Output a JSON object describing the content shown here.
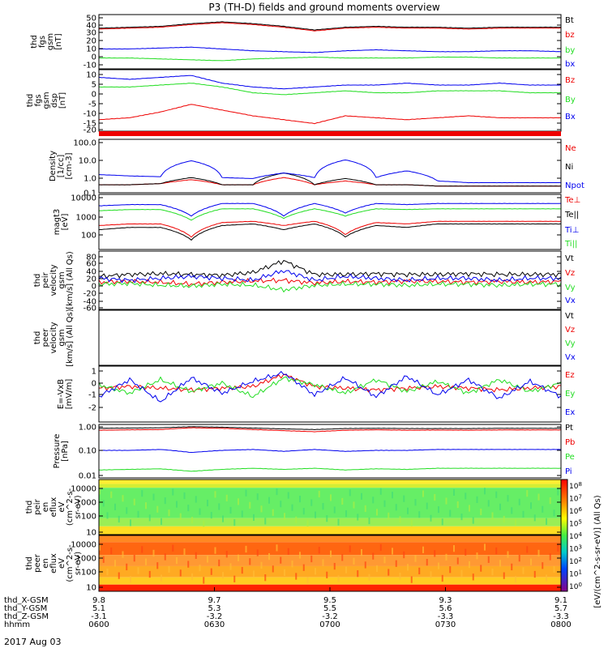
{
  "title": "P3 (TH-D) fields and ground moments overview",
  "date": "2017 Aug 03",
  "colors": {
    "black": "#000000",
    "red": "#ee0000",
    "green": "#22dd22",
    "blue": "#0000ee"
  },
  "chart_data": [
    {
      "type": "line",
      "ylabel": [
        "thd",
        "fgs",
        "gsm",
        "[nT]"
      ],
      "yticks": [
        "50",
        "40",
        "30",
        "20",
        "10",
        "0",
        "-10"
      ],
      "series": [
        {
          "name": "Bt",
          "color": "#000000",
          "values": [
            35,
            36,
            37,
            40,
            42,
            40,
            37,
            33,
            36,
            37,
            36,
            36,
            35,
            36,
            36,
            36
          ]
        },
        {
          "name": "bz",
          "color": "#ee0000",
          "values": [
            34,
            35,
            36,
            39,
            41,
            39,
            36,
            32,
            35,
            36,
            35,
            35,
            34,
            35,
            35,
            35
          ]
        },
        {
          "name": "by",
          "color": "#22dd22",
          "values": [
            2,
            2,
            1,
            0,
            -1,
            1,
            2,
            3,
            2,
            2,
            2,
            3,
            3,
            2,
            2,
            2
          ]
        },
        {
          "name": "bx",
          "color": "#0000ee",
          "values": [
            12,
            12,
            13,
            14,
            12,
            10,
            9,
            8,
            10,
            11,
            10,
            9,
            9,
            10,
            10,
            9
          ]
        }
      ]
    },
    {
      "type": "line",
      "ylabel": [
        "thd",
        "fgs",
        "gsm",
        "dsp",
        "[nT]"
      ],
      "yticks": [
        "10",
        "5",
        "0",
        "-5",
        "-10",
        "-15",
        "-20"
      ],
      "series": [
        {
          "name": "Bz",
          "color": "#ee0000",
          "values": [
            -16,
            -15,
            -12,
            -8,
            -11,
            -14,
            -16,
            -18,
            -14,
            -15,
            -16,
            -15,
            -14,
            -15,
            -15,
            -15
          ]
        },
        {
          "name": "By",
          "color": "#22dd22",
          "values": [
            1,
            1,
            2,
            3,
            1,
            -2,
            -3,
            -2,
            -1,
            -2,
            -2,
            -1,
            -1,
            -1,
            -2,
            -2
          ]
        },
        {
          "name": "Bx",
          "color": "#0000ee",
          "values": [
            6,
            5,
            6,
            7,
            3,
            1,
            0,
            1,
            2,
            2,
            3,
            2,
            2,
            3,
            2,
            2
          ]
        }
      ]
    },
    {
      "type": "line",
      "ylabel": [
        "Density",
        "[1/cc]",
        "[cm-3]"
      ],
      "yticks": [
        "100.0",
        "10.0",
        "1.0",
        "0.1"
      ],
      "series": [
        {
          "name": "Ne",
          "color": "#ee0000",
          "values": [
            0.3,
            0.3,
            0.35,
            0.6,
            0.3,
            0.3,
            0.8,
            0.3,
            0.5,
            0.3,
            0.3,
            0.25,
            0.25,
            0.25,
            0.25,
            0.25
          ]
        },
        {
          "name": "Ni",
          "color": "#000000",
          "values": [
            0.3,
            0.3,
            0.35,
            0.8,
            0.3,
            0.3,
            1.5,
            0.3,
            0.7,
            0.3,
            0.3,
            0.25,
            0.25,
            0.25,
            0.25,
            0.25
          ]
        },
        {
          "name": "Npot",
          "color": "#0000ee",
          "values": [
            1.2,
            1.0,
            0.9,
            8,
            0.8,
            0.7,
            1.5,
            0.8,
            9,
            0.8,
            2,
            0.5,
            0.4,
            0.4,
            0.4,
            0.4
          ]
        }
      ]
    },
    {
      "type": "line",
      "ylabel": [
        "magt3",
        "[eV]"
      ],
      "yticks": [
        "10000",
        "1000",
        "100"
      ],
      "series": [
        {
          "name": "Te⊥",
          "color": "#ee0000",
          "values": [
            600,
            700,
            700,
            200,
            800,
            900,
            600,
            900,
            250,
            800,
            700,
            900,
            900,
            900,
            900,
            900
          ]
        },
        {
          "name": "Te||",
          "color": "#000000",
          "values": [
            400,
            500,
            500,
            150,
            600,
            700,
            400,
            700,
            200,
            600,
            500,
            700,
            700,
            700,
            700,
            700
          ]
        },
        {
          "name": "Ti⊥",
          "color": "#0000ee",
          "values": [
            4000,
            4500,
            4500,
            1500,
            5000,
            5000,
            1500,
            5000,
            2000,
            5000,
            4500,
            5000,
            5000,
            5000,
            5000,
            5000
          ]
        },
        {
          "name": "Ti||",
          "color": "#22dd22",
          "values": [
            2500,
            2800,
            2800,
            1000,
            3000,
            3000,
            1200,
            3000,
            1500,
            3000,
            2800,
            3000,
            3000,
            3000,
            3000,
            3000
          ]
        }
      ]
    },
    {
      "type": "line",
      "ylabel": [
        "thd",
        "peir",
        "velocity",
        "gsm",
        "[km/s] (All Qs)"
      ],
      "yticks": [
        "80",
        "60",
        "40",
        "20",
        "0",
        "-20",
        "-40",
        "-60"
      ],
      "series": [
        {
          "name": "Vt",
          "color": "#000000",
          "values": [
            15,
            20,
            22,
            20,
            18,
            25,
            55,
            20,
            20,
            22,
            20,
            20,
            22,
            20,
            20,
            20
          ]
        },
        {
          "name": "Vz",
          "color": "#ee0000",
          "values": [
            0,
            2,
            0,
            -5,
            0,
            3,
            5,
            -2,
            2,
            0,
            3,
            2,
            0,
            2,
            0,
            2
          ]
        },
        {
          "name": "Vy",
          "color": "#22dd22",
          "values": [
            -5,
            -3,
            -8,
            -10,
            -5,
            -8,
            -20,
            -8,
            -5,
            -5,
            -8,
            -5,
            -5,
            -8,
            -5,
            -5
          ]
        },
        {
          "name": "Vx",
          "color": "#0000ee",
          "values": [
            10,
            5,
            10,
            15,
            10,
            5,
            30,
            5,
            15,
            10,
            5,
            10,
            10,
            5,
            10,
            10
          ]
        }
      ]
    },
    {
      "type": "line",
      "ylabel": [
        "thd",
        "peer",
        "velocity",
        "gsm",
        "[km/s] (All Qs)"
      ],
      "yticks": [],
      "series": [
        {
          "name": "Vt",
          "color": "#000000",
          "values": []
        },
        {
          "name": "Vz",
          "color": "#ee0000",
          "values": []
        },
        {
          "name": "Vy",
          "color": "#22dd22",
          "values": []
        },
        {
          "name": "Vx",
          "color": "#0000ee",
          "values": []
        }
      ]
    },
    {
      "type": "line",
      "ylabel": [
        "E=-VxB",
        "[mV/m]"
      ],
      "yticks": [
        "1",
        "0",
        "-1",
        "-2"
      ],
      "series": [
        {
          "name": "Ez",
          "color": "#ee0000",
          "values": [
            0,
            0.1,
            0,
            -0.1,
            0,
            0.1,
            0.8,
            0.1,
            0,
            -0.1,
            0,
            0.1,
            0,
            -0.1,
            0,
            0.1
          ]
        },
        {
          "name": "Ey",
          "color": "#22dd22",
          "values": [
            0.2,
            -0.3,
            0.5,
            -0.2,
            0.3,
            -0.5,
            0.6,
            0.2,
            -0.3,
            0.5,
            -0.2,
            0.4,
            -0.3,
            0.5,
            -0.2,
            0.3
          ]
        },
        {
          "name": "Ex",
          "color": "#0000ee",
          "values": [
            -0.5,
            0.5,
            -0.8,
            0.6,
            -0.3,
            0.4,
            0.9,
            -0.4,
            0.6,
            -0.5,
            0.7,
            -0.4,
            0.5,
            -0.6,
            0.4,
            -0.5
          ]
        }
      ]
    },
    {
      "type": "line",
      "ylabel": [
        "Pressure",
        "[nPa]"
      ],
      "yticks": [
        "1.00",
        "0.10",
        "0.01"
      ],
      "series": [
        {
          "name": "Pt",
          "color": "#000000",
          "values": [
            0.9,
            0.92,
            0.95,
            1.05,
            1.0,
            0.92,
            0.85,
            0.8,
            0.88,
            0.9,
            0.88,
            0.88,
            0.88,
            0.9,
            0.9,
            0.9
          ]
        },
        {
          "name": "Pb",
          "color": "#ee0000",
          "values": [
            0.75,
            0.78,
            0.8,
            0.95,
            0.9,
            0.8,
            0.72,
            0.65,
            0.75,
            0.78,
            0.75,
            0.76,
            0.75,
            0.77,
            0.77,
            0.77
          ]
        },
        {
          "name": "Pe",
          "color": "#22dd22",
          "values": [
            0.017,
            0.018,
            0.019,
            0.015,
            0.018,
            0.02,
            0.018,
            0.02,
            0.017,
            0.019,
            0.018,
            0.02,
            0.02,
            0.02,
            0.02,
            0.02
          ]
        },
        {
          "name": "Pi",
          "color": "#0000ee",
          "values": [
            0.11,
            0.11,
            0.12,
            0.09,
            0.11,
            0.12,
            0.1,
            0.12,
            0.1,
            0.11,
            0.11,
            0.12,
            0.12,
            0.12,
            0.12,
            0.12
          ]
        },
        {
          "name": "(All Qs)",
          "color": "#000000",
          "values": []
        }
      ]
    },
    {
      "type": "heatmap",
      "ylabel": [
        "thd",
        "peir",
        "en",
        "eflux",
        "eV",
        "(cm^2-s-",
        "sr-eV)"
      ],
      "yticks": [
        "10000",
        "1000",
        "100",
        "10"
      ]
    },
    {
      "type": "heatmap",
      "ylabel": [
        "thd",
        "peer",
        "en",
        "eflux",
        "eV",
        "(cm^2-s-",
        "sr-eV)"
      ],
      "yticks": [
        "10000",
        "1000",
        "100",
        "10"
      ]
    }
  ],
  "colorbar_label": "[eV/(cm^2-s-sr-eV)] (All Qs)",
  "colorbar_ticks": [
    "10^8",
    "10^7",
    "10^6",
    "10^5",
    "10^4",
    "10^3",
    "10^2",
    "10^1",
    "10^0"
  ],
  "xaxis": {
    "rows": [
      {
        "label": "thd_X-GSM",
        "values": [
          "9.8",
          "9.7",
          "9.5",
          "9.3",
          "9.1"
        ]
      },
      {
        "label": "thd_Y-GSM",
        "values": [
          "5.1",
          "5.3",
          "5.5",
          "5.6",
          "5.7"
        ]
      },
      {
        "label": "thd_Z-GSM",
        "values": [
          "-3.1",
          "-3.2",
          "-3.2",
          "-3.3",
          "-3.3"
        ]
      },
      {
        "label": "hhmm",
        "values": [
          "0600",
          "0630",
          "0700",
          "0730",
          "0800"
        ]
      }
    ]
  }
}
